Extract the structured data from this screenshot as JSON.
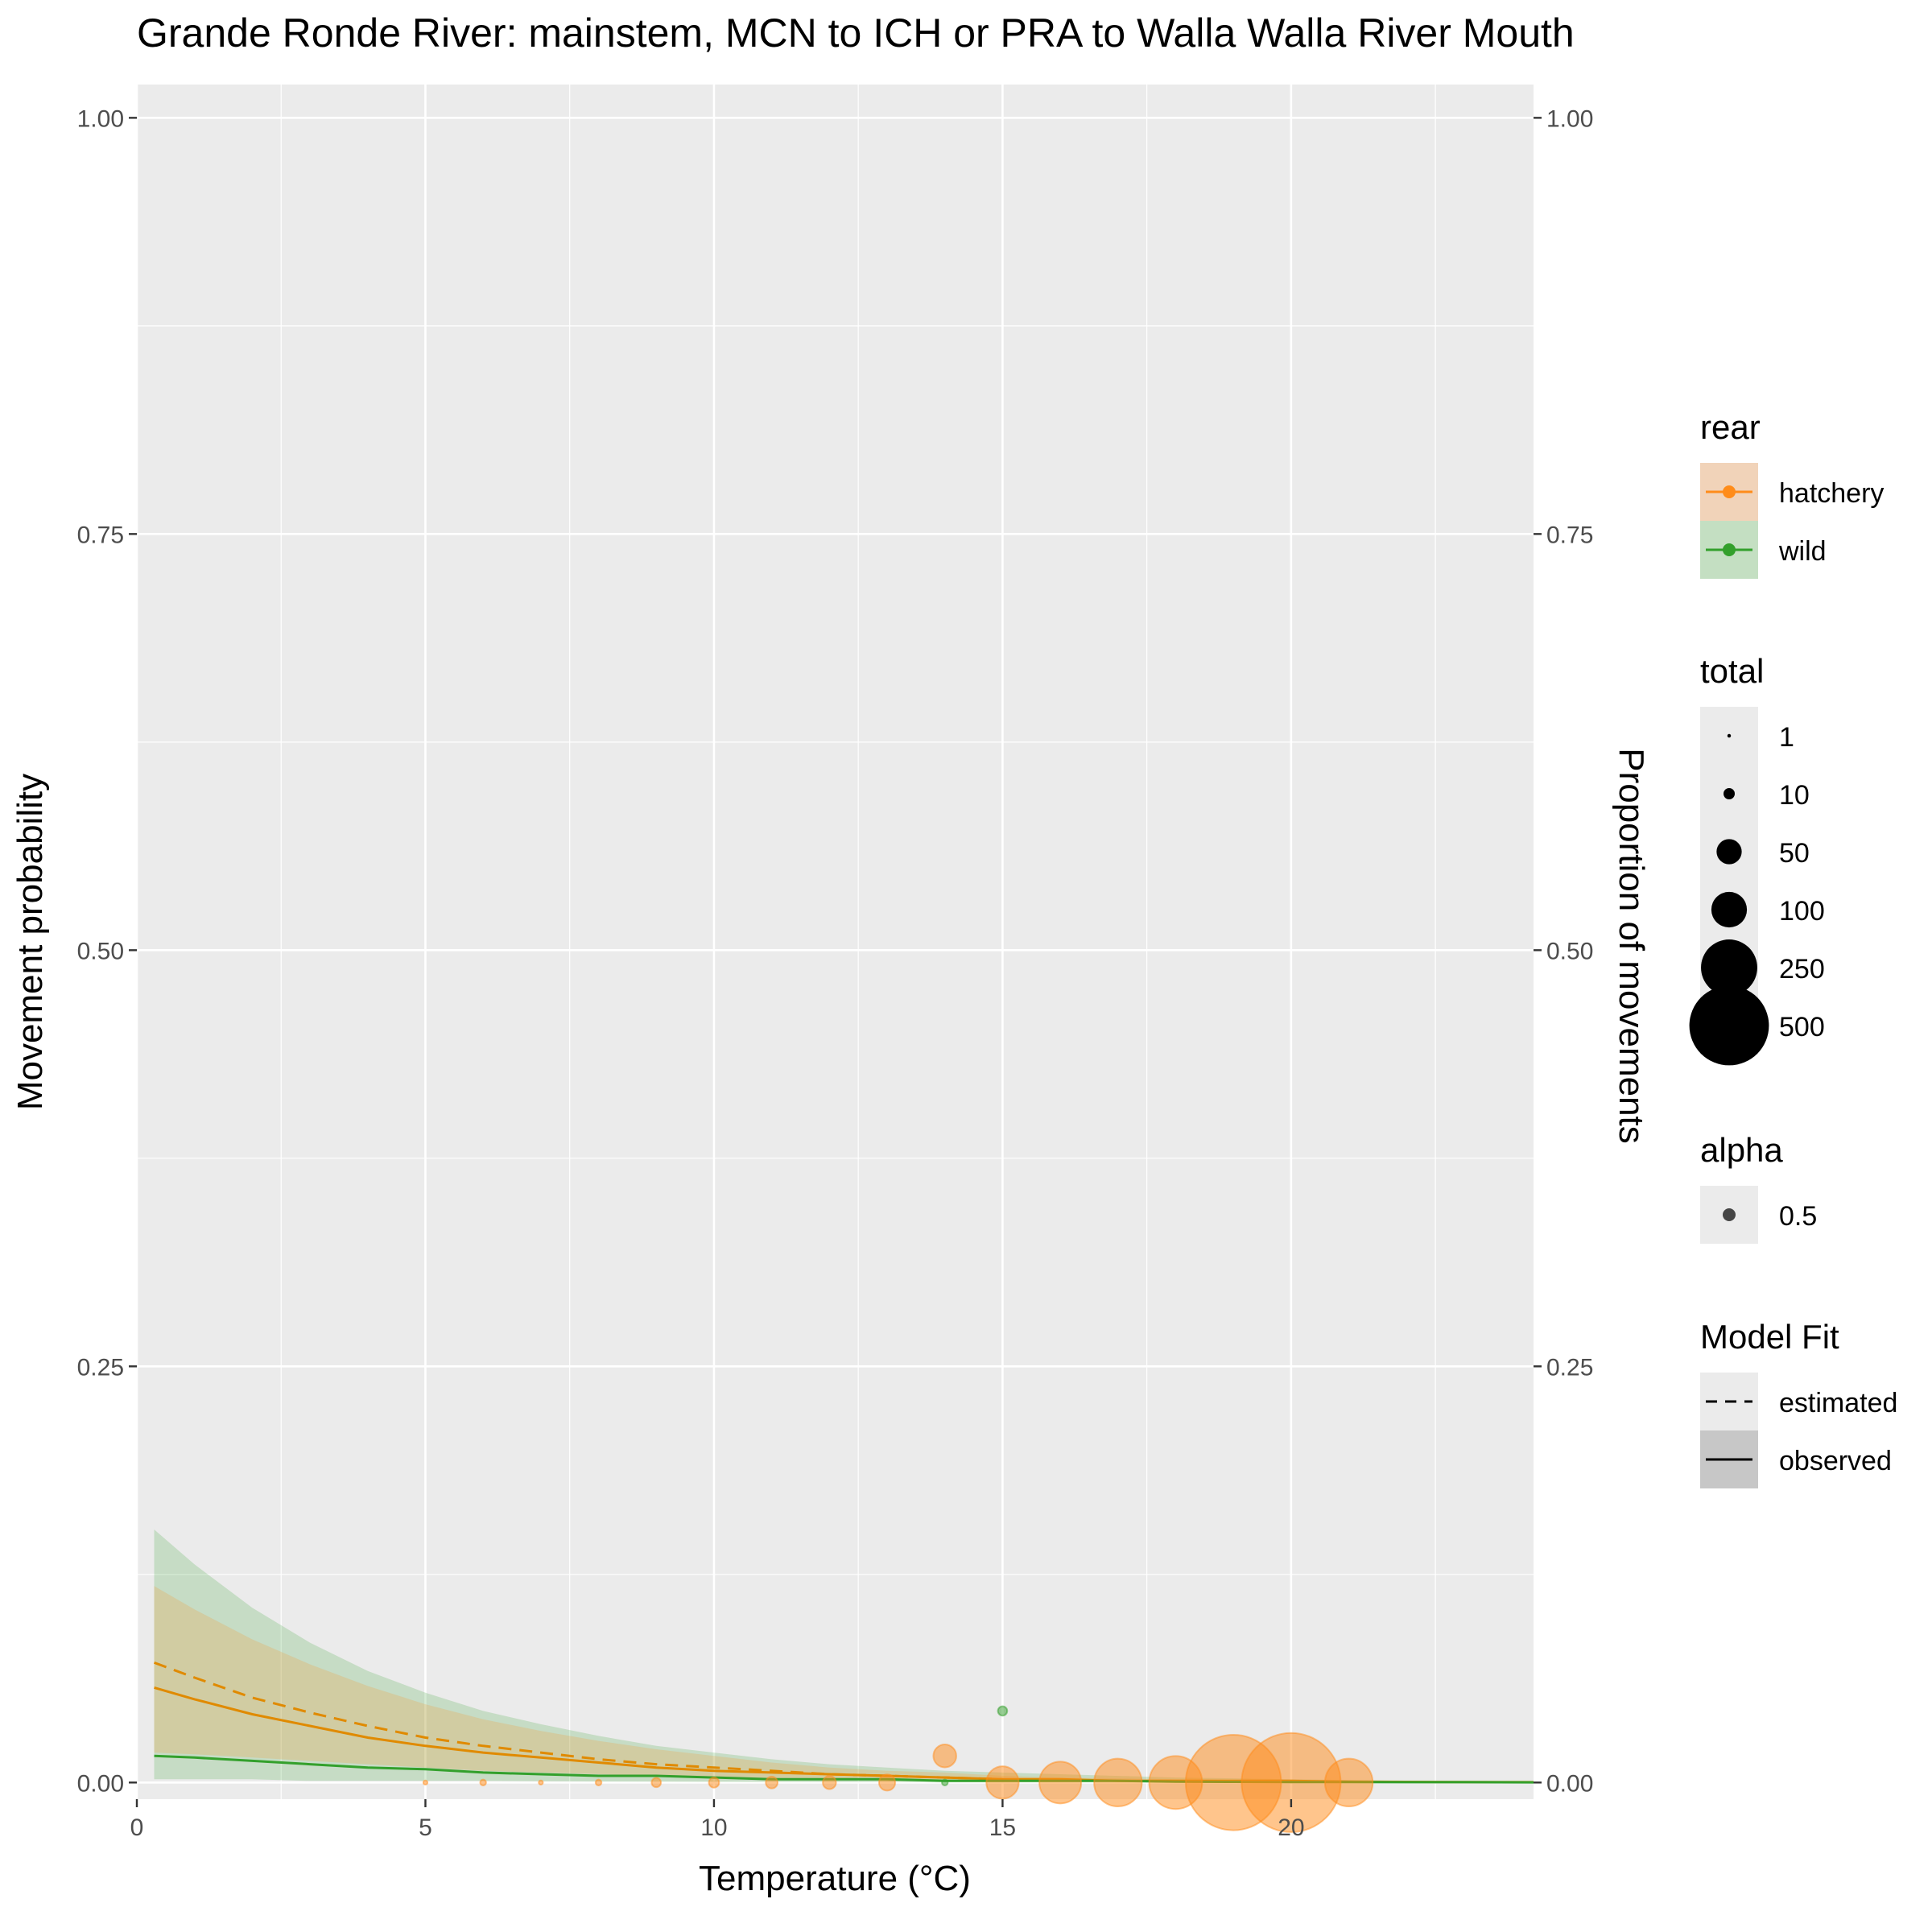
{
  "chart_data": {
    "type": "scatter",
    "title": "Grande Ronde River: mainstem, MCN to ICH or PRA to Walla Walla River Mouth",
    "xlabel": "Temperature (°C)",
    "ylabel": "Movement probability",
    "ylabel_right": "Proportion of movements",
    "xlim": [
      0,
      24.2
    ],
    "ylim": [
      -0.01,
      1.02
    ],
    "x_ticks": [
      0,
      5,
      10,
      15,
      20
    ],
    "y_ticks": [
      0.0,
      0.25,
      0.5,
      0.75,
      1.0
    ],
    "y_tick_labels": [
      "0.00",
      "0.25",
      "0.50",
      "0.75",
      "1.00"
    ],
    "x_tick_labels": [
      "0",
      "5",
      "10",
      "15",
      "20"
    ],
    "grid": true,
    "legend_position": "right",
    "colors": {
      "hatchery": "#ff8c1a",
      "hatchery_line": "#e08a00",
      "wild": "#33a02c",
      "panel_bg": "#ebebeb",
      "grid": "#ffffff"
    },
    "series": [
      {
        "name": "hatchery",
        "curve_observed": {
          "x": [
            0.3,
            1,
            2,
            3,
            4,
            5,
            6,
            7,
            8,
            9,
            10,
            11,
            12,
            13,
            14,
            15,
            16,
            17,
            18,
            19,
            20,
            21,
            22,
            23,
            24.2
          ],
          "y": [
            0.057,
            0.05,
            0.041,
            0.034,
            0.027,
            0.022,
            0.018,
            0.015,
            0.012,
            0.009,
            0.007,
            0.006,
            0.005,
            0.004,
            0.003,
            0.002,
            0.002,
            0.001,
            0.001,
            0.001,
            0.001,
            0.0005,
            0.0004,
            0.0003,
            0.0002
          ]
        },
        "curve_estimated": {
          "x": [
            0.3,
            1,
            2,
            3,
            4,
            5,
            6,
            7,
            8,
            9,
            10,
            11,
            12,
            13,
            14,
            15
          ],
          "y": [
            0.072,
            0.063,
            0.051,
            0.042,
            0.034,
            0.027,
            0.022,
            0.018,
            0.014,
            0.011,
            0.009,
            0.007,
            0.005,
            0.004,
            0.003,
            0.002
          ]
        },
        "ribbon": {
          "x": [
            0.3,
            1,
            2,
            3,
            4,
            5,
            6,
            7,
            8,
            9,
            10,
            11,
            12,
            13,
            14,
            15,
            16,
            18,
            20,
            22,
            24.2
          ],
          "lower": [
            0.018,
            0.017,
            0.015,
            0.013,
            0.011,
            0.009,
            0.007,
            0.006,
            0.005,
            0.004,
            0.003,
            0.002,
            0.002,
            0.001,
            0.001,
            0.001,
            0.0005,
            0.0003,
            0.0002,
            0.0001,
            0.0001
          ],
          "upper": [
            0.118,
            0.104,
            0.086,
            0.071,
            0.058,
            0.047,
            0.038,
            0.031,
            0.025,
            0.02,
            0.016,
            0.012,
            0.009,
            0.007,
            0.006,
            0.004,
            0.003,
            0.002,
            0.001,
            0.001,
            0.0005
          ]
        },
        "points": [
          {
            "x": 5,
            "y": 0,
            "total": 1
          },
          {
            "x": 6,
            "y": 0,
            "total": 2
          },
          {
            "x": 7,
            "y": 0,
            "total": 1
          },
          {
            "x": 8,
            "y": 0,
            "total": 2
          },
          {
            "x": 9,
            "y": 0,
            "total": 5
          },
          {
            "x": 10,
            "y": 0,
            "total": 6
          },
          {
            "x": 11,
            "y": 0,
            "total": 8
          },
          {
            "x": 12,
            "y": 0,
            "total": 10
          },
          {
            "x": 13,
            "y": 0,
            "total": 15
          },
          {
            "x": 14,
            "y": 0.016,
            "total": 30
          },
          {
            "x": 15,
            "y": 0,
            "total": 60
          },
          {
            "x": 16,
            "y": 0,
            "total": 100
          },
          {
            "x": 17,
            "y": 0,
            "total": 130
          },
          {
            "x": 18,
            "y": 0,
            "total": 160
          },
          {
            "x": 19,
            "y": 0,
            "total": 520
          },
          {
            "x": 20,
            "y": 0,
            "total": 560
          },
          {
            "x": 21,
            "y": 0,
            "total": 130
          }
        ]
      },
      {
        "name": "wild",
        "curve_observed": {
          "x": [
            0.3,
            1,
            2,
            3,
            4,
            5,
            6,
            7,
            8,
            9,
            10,
            11,
            12,
            13,
            14,
            15,
            16,
            17,
            18,
            19,
            20,
            21,
            22,
            23,
            24.2
          ],
          "y": [
            0.016,
            0.015,
            0.013,
            0.011,
            0.009,
            0.008,
            0.006,
            0.005,
            0.004,
            0.004,
            0.003,
            0.002,
            0.002,
            0.002,
            0.001,
            0.001,
            0.001,
            0.001,
            0.0005,
            0.0004,
            0.0003,
            0.0003,
            0.0002,
            0.0002,
            0.0001
          ]
        },
        "ribbon": {
          "x": [
            0.3,
            1,
            2,
            3,
            4,
            5,
            6,
            7,
            8,
            9,
            10,
            11,
            12,
            13,
            14,
            15,
            16,
            18,
            20,
            22,
            24.2
          ],
          "lower": [
            0.002,
            0.002,
            0.002,
            0.001,
            0.001,
            0.001,
            0.001,
            0.0008,
            0.0006,
            0.0005,
            0.0004,
            0.0003,
            0.0002,
            0.0002,
            0.0001,
            0.0001,
            0.0001,
            0.0001,
            0.0001,
            0.0001,
            0.0001
          ],
          "upper": [
            0.152,
            0.131,
            0.105,
            0.084,
            0.067,
            0.054,
            0.043,
            0.035,
            0.028,
            0.022,
            0.018,
            0.014,
            0.011,
            0.009,
            0.007,
            0.006,
            0.005,
            0.003,
            0.002,
            0.001,
            0.001
          ]
        },
        "points": [
          {
            "x": 14,
            "y": 0,
            "total": 2
          },
          {
            "x": 15,
            "y": 0.043,
            "total": 5
          }
        ]
      }
    ],
    "legend": {
      "rear": {
        "title": "rear",
        "items": [
          "hatchery",
          "wild"
        ]
      },
      "total": {
        "title": "total",
        "items": [
          1,
          10,
          50,
          100,
          250,
          500
        ],
        "labels": [
          "1",
          "10",
          "50",
          "100",
          "250",
          "500"
        ]
      },
      "alpha": {
        "title": "alpha",
        "items": [
          "0.5"
        ]
      },
      "model_fit": {
        "title": "Model Fit",
        "items": [
          "estimated",
          "observed"
        ]
      }
    }
  }
}
